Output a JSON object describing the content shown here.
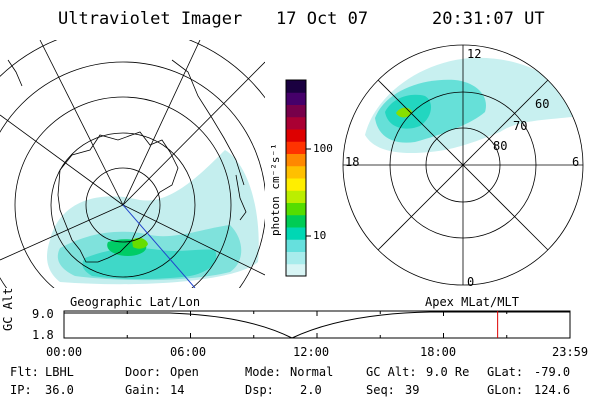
{
  "header": {
    "instrument": "Ultraviolet Imager",
    "date": "17 Oct 07",
    "time": "20:31:07 UT"
  },
  "colorbar": {
    "label": "photon cm⁻²s⁻¹",
    "ticks": [
      {
        "label": "100",
        "value": 100
      },
      {
        "label": "10",
        "value": 10
      }
    ],
    "colors": [
      "#d8f5f5",
      "#a8ecec",
      "#66e0dd",
      "#00d7b4",
      "#00cc55",
      "#55dd00",
      "#bbee00",
      "#ffee00",
      "#ffc000",
      "#ff8800",
      "#ff3300",
      "#dd0000",
      "#aa0033",
      "#77004a",
      "#45006a",
      "#1a0040"
    ]
  },
  "geo_panel": {
    "label": "Geographic Lat/Lon"
  },
  "apex_panel": {
    "label": "Apex MLat/MLT",
    "mlt_labels": {
      "top": "12",
      "bottom": "0",
      "left": "18",
      "right": "6"
    },
    "lat_labels": [
      "80",
      "70",
      "60"
    ]
  },
  "timeline": {
    "axis_label": "GC Alt",
    "y_labels": [
      "9.0",
      "1.8"
    ],
    "x_labels": [
      "00:00",
      "06:00",
      "12:00",
      "18:00",
      "23:59"
    ],
    "current_time_fraction": 0.857
  },
  "footer": {
    "row1": [
      {
        "key": "Flt:",
        "value": "LBHL"
      },
      {
        "key": "Door:",
        "value": "Open"
      },
      {
        "key": "Mode:",
        "value": "Normal"
      },
      {
        "key": "GC Alt:",
        "value": "9.0 Re"
      },
      {
        "key": "GLat:",
        "value": "-79.0"
      }
    ],
    "row2": [
      {
        "key": "IP:",
        "value": "36.0"
      },
      {
        "key": "Gain:",
        "value": "14"
      },
      {
        "key": "Dsp:",
        "value": "2.0"
      },
      {
        "key": "Seq:",
        "value": "39"
      },
      {
        "key": "GLon:",
        "value": "124.6"
      }
    ]
  },
  "colors": {
    "marker": "#dd0000",
    "track": "#2244cc"
  }
}
